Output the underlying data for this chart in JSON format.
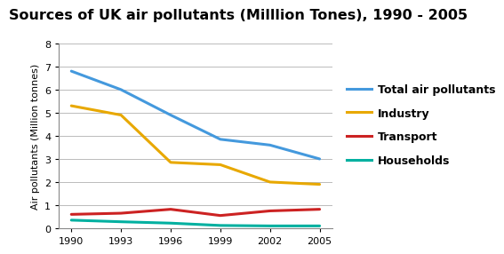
{
  "title": "Sources of UK air pollutants (Milllion Tones), 1990 - 2005",
  "ylabel": "Air pollutants (Million tonnes)",
  "years": [
    1990,
    1993,
    1996,
    1999,
    2002,
    2005
  ],
  "series": {
    "Total air pollutants": {
      "values": [
        6.8,
        6.0,
        4.9,
        3.85,
        3.6,
        3.0
      ],
      "color": "#4499DD",
      "linewidth": 2.2
    },
    "Industry": {
      "values": [
        5.3,
        4.9,
        2.85,
        2.75,
        2.0,
        1.9
      ],
      "color": "#E8A800",
      "linewidth": 2.2
    },
    "Transport": {
      "values": [
        0.6,
        0.65,
        0.82,
        0.55,
        0.75,
        0.82
      ],
      "color": "#CC2222",
      "linewidth": 2.2
    },
    "Households": {
      "values": [
        0.35,
        0.28,
        0.22,
        0.12,
        0.1,
        0.1
      ],
      "color": "#00B0A0",
      "linewidth": 2.2
    }
  },
  "ylim": [
    0,
    8
  ],
  "yticks": [
    0,
    1,
    2,
    3,
    4,
    5,
    6,
    7,
    8
  ],
  "background_color": "#ffffff",
  "plot_bg_color": "#ffffff",
  "grid_color": "#bbbbbb",
  "title_fontsize": 11.5,
  "axis_label_fontsize": 8,
  "tick_fontsize": 8,
  "legend_fontsize": 9
}
